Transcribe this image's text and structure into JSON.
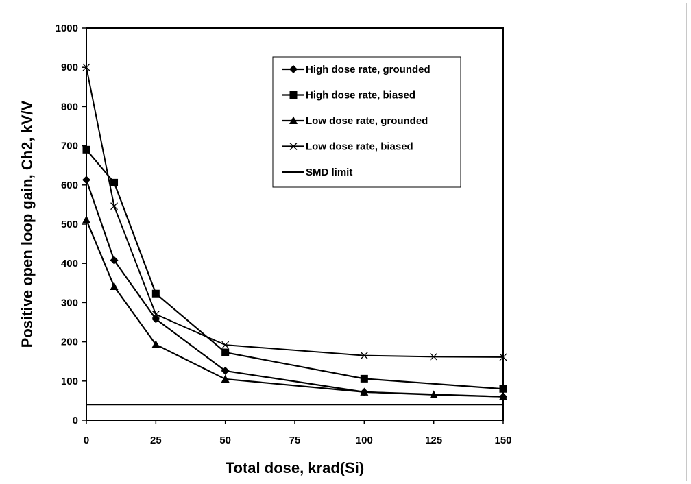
{
  "chart_data": {
    "type": "line",
    "title": "",
    "xlabel": "Total dose, krad(Si)",
    "ylabel": "Positive open loop gain, Ch2, kV/V",
    "xlim": [
      0,
      150
    ],
    "ylim": [
      0,
      1000
    ],
    "xticks": [
      0,
      25,
      50,
      75,
      100,
      125,
      150
    ],
    "yticks": [
      0,
      100,
      200,
      300,
      400,
      500,
      600,
      700,
      800,
      900,
      1000
    ],
    "grid": false,
    "legend_position": "top-right",
    "series": [
      {
        "name": "High dose rate, grounded",
        "marker": "diamond",
        "x": [
          0,
          10,
          25,
          50,
          100,
          150
        ],
        "y": [
          613,
          408,
          258,
          126,
          72,
          60
        ]
      },
      {
        "name": "High dose rate, biased",
        "marker": "square",
        "x": [
          0,
          10,
          25,
          50,
          100,
          150
        ],
        "y": [
          690,
          606,
          323,
          173,
          106,
          80
        ]
      },
      {
        "name": "Low dose rate, grounded",
        "marker": "triangle",
        "x": [
          0,
          10,
          25,
          50,
          100,
          125,
          150
        ],
        "y": [
          511,
          341,
          193,
          105,
          72,
          65,
          60
        ]
      },
      {
        "name": "Low dose rate, biased",
        "marker": "x",
        "x": [
          0,
          10,
          25,
          50,
          100,
          125,
          150
        ],
        "y": [
          900,
          546,
          270,
          192,
          165,
          162,
          161
        ]
      },
      {
        "name": "SMD limit",
        "marker": "none",
        "x": [
          0,
          150
        ],
        "y": [
          40,
          40
        ]
      }
    ],
    "colors": {
      "line": "#000000",
      "background": "#ffffff"
    }
  }
}
